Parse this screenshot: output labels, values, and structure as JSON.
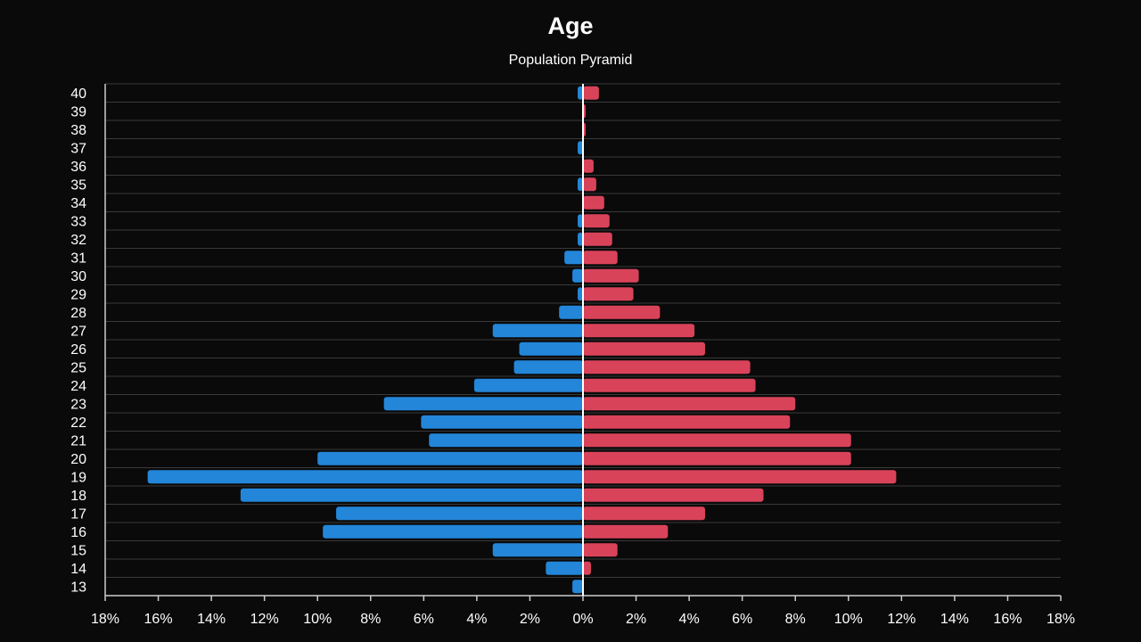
{
  "chart_data": {
    "type": "bar",
    "orientation": "horizontal",
    "layout": "population-pyramid",
    "title": "Age",
    "subtitle": "Population Pyramid",
    "xlabel": "",
    "ylabel": "",
    "xlim": [
      -18,
      18
    ],
    "x_ticks": [
      -18,
      -16,
      -14,
      -12,
      -10,
      -8,
      -6,
      -4,
      -2,
      0,
      2,
      4,
      6,
      8,
      10,
      12,
      14,
      16,
      18
    ],
    "x_tick_labels": [
      "18%",
      "16%",
      "14%",
      "12%",
      "10%",
      "8%",
      "6%",
      "4%",
      "2%",
      "0%",
      "2%",
      "4%",
      "6%",
      "8%",
      "10%",
      "12%",
      "14%",
      "16%",
      "18%"
    ],
    "grid": true,
    "legend": "none",
    "categories": [
      "40",
      "39",
      "38",
      "37",
      "36",
      "35",
      "34",
      "33",
      "32",
      "31",
      "30",
      "29",
      "28",
      "27",
      "26",
      "25",
      "24",
      "23",
      "22",
      "21",
      "20",
      "19",
      "18",
      "17",
      "16",
      "15",
      "14",
      "13"
    ],
    "series": [
      {
        "side": "left",
        "color": "#2386d9",
        "values": [
          0.2,
          0,
          0,
          0.2,
          0,
          0.2,
          0,
          0.2,
          0.2,
          0.7,
          0.4,
          0.2,
          0.9,
          3.4,
          2.4,
          2.6,
          4.1,
          7.5,
          6.1,
          5.8,
          10.0,
          16.4,
          12.9,
          9.3,
          9.8,
          3.4,
          1.4,
          0.4
        ]
      },
      {
        "side": "right",
        "color": "#d9435a",
        "values": [
          0.6,
          0.1,
          0.1,
          0,
          0.4,
          0.5,
          0.8,
          1.0,
          1.1,
          1.3,
          2.1,
          1.9,
          2.9,
          4.2,
          4.6,
          6.3,
          6.5,
          8.0,
          7.8,
          10.1,
          10.1,
          11.8,
          6.8,
          4.6,
          3.2,
          1.3,
          0.3,
          0
        ]
      }
    ]
  },
  "style": {
    "background": "#0a0a0a",
    "text_color": "#ffffff",
    "grid_color": "#3a3a3a",
    "axis_color": "#ffffff"
  }
}
